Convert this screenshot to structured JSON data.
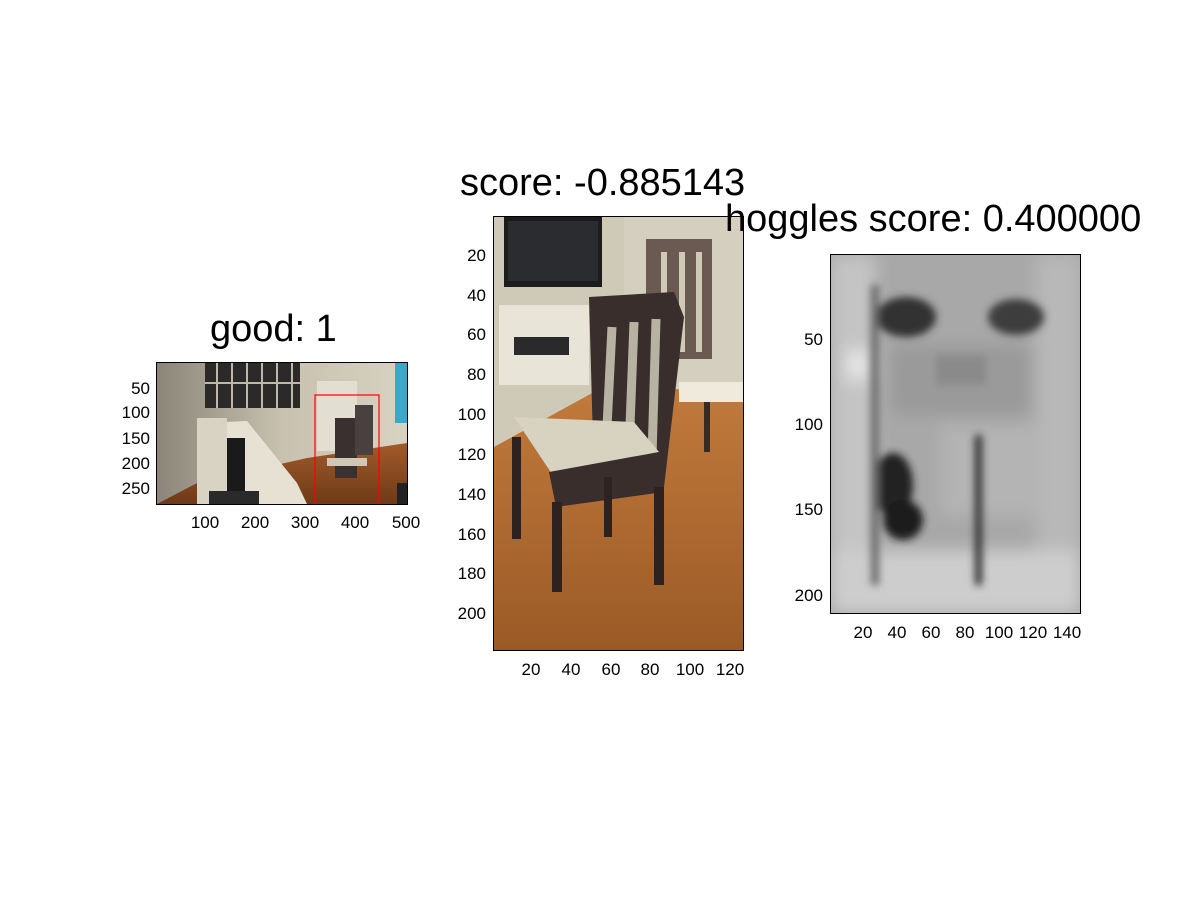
{
  "panel1": {
    "title": "good: 1",
    "x_ticks": [
      "100",
      "200",
      "300",
      "400",
      "500"
    ],
    "y_ticks": [
      "50",
      "100",
      "150",
      "200",
      "250"
    ],
    "image_desc_icon": "room-photo-with-detection-box"
  },
  "panel2": {
    "title": "score: -0.885143",
    "x_ticks": [
      "20",
      "40",
      "60",
      "80",
      "100",
      "120"
    ],
    "y_ticks": [
      "20",
      "40",
      "60",
      "80",
      "100",
      "120",
      "140",
      "160",
      "180",
      "200"
    ],
    "image_desc_icon": "chair-crop-photo"
  },
  "panel3": {
    "title": "hoggles score: 0.400000",
    "x_ticks": [
      "20",
      "40",
      "60",
      "80",
      "100",
      "120",
      "140"
    ],
    "y_ticks": [
      "50",
      "100",
      "150",
      "200"
    ],
    "image_desc_icon": "hoggles-grayscale-visualization"
  },
  "colors": {
    "detection_box": "#ff0000",
    "background": "#ffffff"
  }
}
